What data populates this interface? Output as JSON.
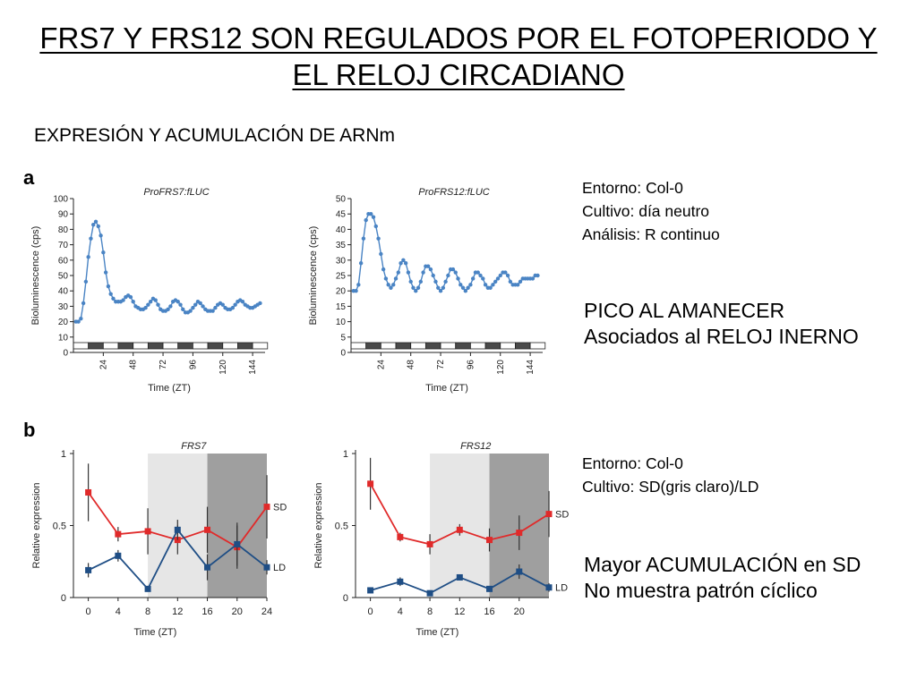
{
  "slide": {
    "title_line1": "FRS7 Y FRS12 SON REGULADOS POR EL FOTOPERIODO Y",
    "title_line2": "EL RELOJ CIRCADIANO",
    "section_heading": "EXPRESIÓN Y ACUMULACIÓN DE ARNm"
  },
  "panel_a": {
    "letter": "a",
    "info": [
      "Entorno: Col-0",
      "Cultivo: día neutro",
      "Análisis: R continuo"
    ],
    "note": [
      "PICO AL AMANECER",
      "Asociados al RELOJ INERNO"
    ]
  },
  "panel_b": {
    "letter": "b",
    "info": [
      "Entorno: Col-0",
      "Cultivo: SD(gris claro)/LD"
    ],
    "note": [
      "Mayor ACUMULACIÓN en SD",
      "No muestra patrón cíclico"
    ]
  },
  "colors": {
    "luc_series": "#4a84c4",
    "sd_series": "#e02a2a",
    "ld_series": "#1f4e85",
    "light_box_shade": "#e6e6e6",
    "dark_box_shade": "#9f9f9f"
  },
  "chart_data": [
    {
      "type": "line",
      "title": "ProFRS7:fLUC",
      "xlabel": "Time (ZT)",
      "ylabel": "Bioluminescence (cps)",
      "xlim": [
        0,
        154
      ],
      "ylim": [
        0,
        100
      ],
      "x_ticks": [
        "24",
        "48",
        "72",
        "96",
        "120",
        "144"
      ],
      "x_tick_values": [
        24,
        48,
        72,
        96,
        120,
        144
      ],
      "y_ticks": [
        "0",
        "10",
        "20",
        "30",
        "40",
        "50",
        "60",
        "70",
        "80",
        "90",
        "100"
      ],
      "y_tick_values": [
        0,
        10,
        20,
        30,
        40,
        50,
        60,
        70,
        80,
        90,
        100
      ],
      "light_dark_bar": true,
      "series": [
        {
          "x": [
            2,
            4,
            6,
            8,
            10,
            12,
            14,
            16,
            18,
            20,
            22,
            24,
            26,
            28,
            30,
            32,
            34,
            36,
            38,
            40,
            42,
            44,
            46,
            48,
            50,
            52,
            54,
            56,
            58,
            60,
            62,
            64,
            66,
            68,
            70,
            72,
            74,
            76,
            78,
            80,
            82,
            84,
            86,
            88,
            90,
            92,
            94,
            96,
            98,
            100,
            102,
            104,
            106,
            108,
            110,
            112,
            114,
            116,
            118,
            120,
            122,
            124,
            126,
            128,
            130,
            132,
            134,
            136,
            138,
            140,
            142,
            144,
            146,
            148,
            150
          ],
          "y": [
            20,
            20,
            22,
            32,
            46,
            62,
            74,
            83,
            85,
            82,
            76,
            65,
            52,
            43,
            38,
            35,
            33,
            33,
            33,
            34,
            36,
            37,
            36,
            33,
            30,
            29,
            28,
            28,
            29,
            31,
            33,
            35,
            34,
            31,
            28,
            27,
            27,
            28,
            30,
            33,
            34,
            33,
            31,
            28,
            26,
            26,
            27,
            29,
            31,
            33,
            32,
            30,
            28,
            27,
            27,
            27,
            29,
            31,
            32,
            31,
            29,
            28,
            28,
            29,
            31,
            33,
            34,
            33,
            31,
            30,
            29,
            29,
            30,
            31,
            32
          ]
        }
      ]
    },
    {
      "type": "line",
      "title": "ProFRS12:fLUC",
      "xlabel": "Time (ZT)",
      "ylabel": "Bioluminescence (cps)",
      "xlim": [
        0,
        154
      ],
      "ylim": [
        0,
        50
      ],
      "x_ticks": [
        "24",
        "48",
        "72",
        "96",
        "120",
        "144"
      ],
      "x_tick_values": [
        24,
        48,
        72,
        96,
        120,
        144
      ],
      "y_ticks": [
        "0",
        "5",
        "10",
        "15",
        "20",
        "25",
        "30",
        "35",
        "40",
        "45",
        "50"
      ],
      "y_tick_values": [
        0,
        5,
        10,
        15,
        20,
        25,
        30,
        35,
        40,
        45,
        50
      ],
      "light_dark_bar": true,
      "series": [
        {
          "x": [
            2,
            4,
            6,
            8,
            10,
            12,
            14,
            16,
            18,
            20,
            22,
            24,
            26,
            28,
            30,
            32,
            34,
            36,
            38,
            40,
            42,
            44,
            46,
            48,
            50,
            52,
            54,
            56,
            58,
            60,
            62,
            64,
            66,
            68,
            70,
            72,
            74,
            76,
            78,
            80,
            82,
            84,
            86,
            88,
            90,
            92,
            94,
            96,
            98,
            100,
            102,
            104,
            106,
            108,
            110,
            112,
            114,
            116,
            118,
            120,
            122,
            124,
            126,
            128,
            130,
            132,
            134,
            136,
            138,
            140,
            142,
            144,
            146,
            148,
            150
          ],
          "y": [
            20,
            20,
            22,
            29,
            37,
            43,
            45,
            45,
            44,
            41,
            37,
            32,
            27,
            24,
            22,
            21,
            22,
            24,
            26,
            29,
            30,
            29,
            26,
            23,
            21,
            20,
            21,
            23,
            26,
            28,
            28,
            27,
            25,
            23,
            21,
            20,
            21,
            23,
            25,
            27,
            27,
            26,
            24,
            22,
            21,
            20,
            21,
            22,
            24,
            26,
            26,
            25,
            24,
            22,
            21,
            21,
            22,
            23,
            24,
            25,
            26,
            26,
            25,
            23,
            22,
            22,
            22,
            23,
            24,
            24,
            24,
            24,
            24,
            25,
            25
          ]
        }
      ]
    },
    {
      "type": "line",
      "title": "FRS7",
      "xlabel": "Time (ZT)",
      "ylabel": "Relative expression",
      "xlim": [
        -2,
        24
      ],
      "ylim": [
        0,
        1
      ],
      "x_ticks": [
        "0",
        "4",
        "8",
        "12",
        "16",
        "20",
        "24"
      ],
      "x_tick_values": [
        0,
        4,
        8,
        12,
        16,
        20,
        24
      ],
      "y_ticks": [
        "0",
        "0.5",
        "1"
      ],
      "y_tick_values": [
        0,
        0.5,
        1
      ],
      "shaded_regions": [
        {
          "from": 8,
          "to": 16,
          "shade": "light"
        },
        {
          "from": 16,
          "to": 24,
          "shade": "dark"
        }
      ],
      "series": [
        {
          "name": "SD",
          "x": [
            0,
            4,
            8,
            12,
            16,
            20,
            24
          ],
          "y": [
            0.73,
            0.44,
            0.46,
            0.4,
            0.47,
            0.35,
            0.63
          ],
          "err": [
            0.2,
            0.05,
            0.16,
            0.1,
            0.16,
            0.15,
            0.22
          ]
        },
        {
          "name": "LD",
          "x": [
            0,
            4,
            8,
            12,
            16,
            20,
            24
          ],
          "y": [
            0.19,
            0.29,
            0.06,
            0.47,
            0.21,
            0.37,
            0.21
          ],
          "err": [
            0.05,
            0.04,
            0.02,
            0.07,
            0.09,
            0.15,
            0.05
          ]
        }
      ]
    },
    {
      "type": "line",
      "title": "FRS12",
      "xlabel": "Time (ZT)",
      "ylabel": "Relative expression",
      "xlim": [
        -2,
        24
      ],
      "ylim": [
        0,
        1
      ],
      "x_ticks": [
        "0",
        "4",
        "8",
        "12",
        "16",
        "20"
      ],
      "x_tick_values": [
        0,
        4,
        8,
        12,
        16,
        20
      ],
      "y_ticks": [
        "0",
        "0.5",
        "1"
      ],
      "y_tick_values": [
        0,
        0.5,
        1
      ],
      "shaded_regions": [
        {
          "from": 8,
          "to": 16,
          "shade": "light"
        },
        {
          "from": 16,
          "to": 24,
          "shade": "dark"
        }
      ],
      "series": [
        {
          "name": "SD",
          "x": [
            0,
            4,
            8,
            12,
            16,
            20,
            24
          ],
          "y": [
            0.79,
            0.42,
            0.37,
            0.47,
            0.4,
            0.45,
            0.58
          ],
          "err": [
            0.18,
            0.03,
            0.07,
            0.04,
            0.08,
            0.12,
            0.16
          ]
        },
        {
          "name": "LD",
          "x": [
            0,
            4,
            8,
            12,
            16,
            20,
            24
          ],
          "y": [
            0.05,
            0.11,
            0.03,
            0.14,
            0.06,
            0.18,
            0.07
          ],
          "err": [
            0.01,
            0.03,
            0.01,
            0.01,
            0.02,
            0.05,
            0.03
          ]
        }
      ]
    }
  ]
}
